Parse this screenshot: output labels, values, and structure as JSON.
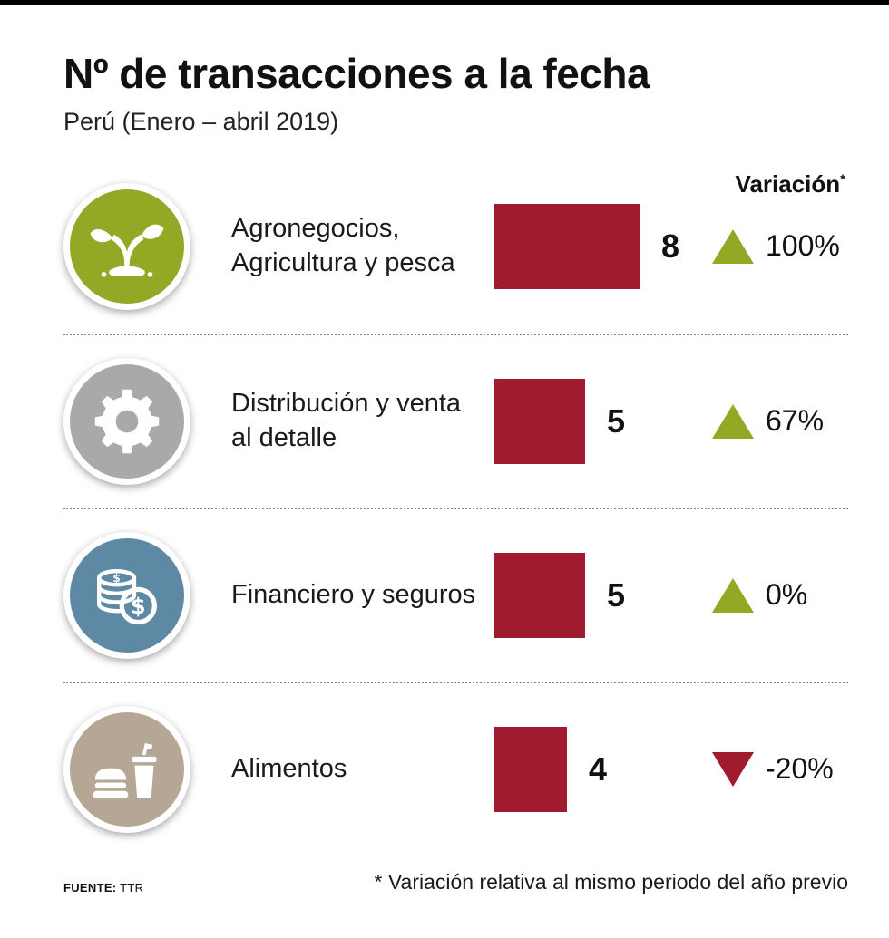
{
  "colors": {
    "bar_red": "#a01b2e",
    "triangle_up_green": "#93a825",
    "triangle_down_red": "#a01b2e",
    "icon_green": "#93a825",
    "icon_gray": "#a9a9a9",
    "icon_blue": "#5d89a5",
    "icon_tan": "#b5a794"
  },
  "header": {
    "title": "Nº de transacciones a la fecha",
    "subtitle": "Perú (Enero – abril 2019)",
    "variation_label": "Variación",
    "variation_asterisk": "*"
  },
  "chart_data": {
    "type": "bar",
    "orientation": "horizontal",
    "title": "Nº de transacciones a la fecha",
    "subtitle": "Perú (Enero – abril 2019)",
    "categories": [
      "Agronegocios, Agricultura y pesca",
      "Distribución y venta al detalle",
      "Financiero y seguros",
      "Alimentos"
    ],
    "values": [
      8,
      5,
      5,
      4
    ],
    "variation_header": "Variación*",
    "variations": [
      "100%",
      "67%",
      "0%",
      "-20%"
    ],
    "variation_directions": [
      "up",
      "up",
      "up",
      "down"
    ],
    "source": "TTR",
    "footnote": "* Variación relativa al mismo periodo del año previo"
  },
  "rows": [
    {
      "label": "Agronegocios, Agricultura y pesca",
      "value": "8",
      "variation": "100%",
      "direction": "up",
      "icon": "plant-icon",
      "icon_color": "#93a825"
    },
    {
      "label": "Distribución y venta al detalle",
      "value": "5",
      "variation": "67%",
      "direction": "up",
      "icon": "gear-icon",
      "icon_color": "#a9a9a9"
    },
    {
      "label": "Financiero y seguros",
      "value": "5",
      "variation": "0%",
      "direction": "up",
      "icon": "coins-icon",
      "icon_color": "#5d89a5"
    },
    {
      "label": "Alimentos",
      "value": "4",
      "variation": "-20%",
      "direction": "down",
      "icon": "burger-drink-icon",
      "icon_color": "#b5a794"
    }
  ],
  "footer": {
    "source_label": "FUENTE:",
    "source_value": "TTR",
    "note": "* Variación relativa al mismo periodo del año previo"
  }
}
